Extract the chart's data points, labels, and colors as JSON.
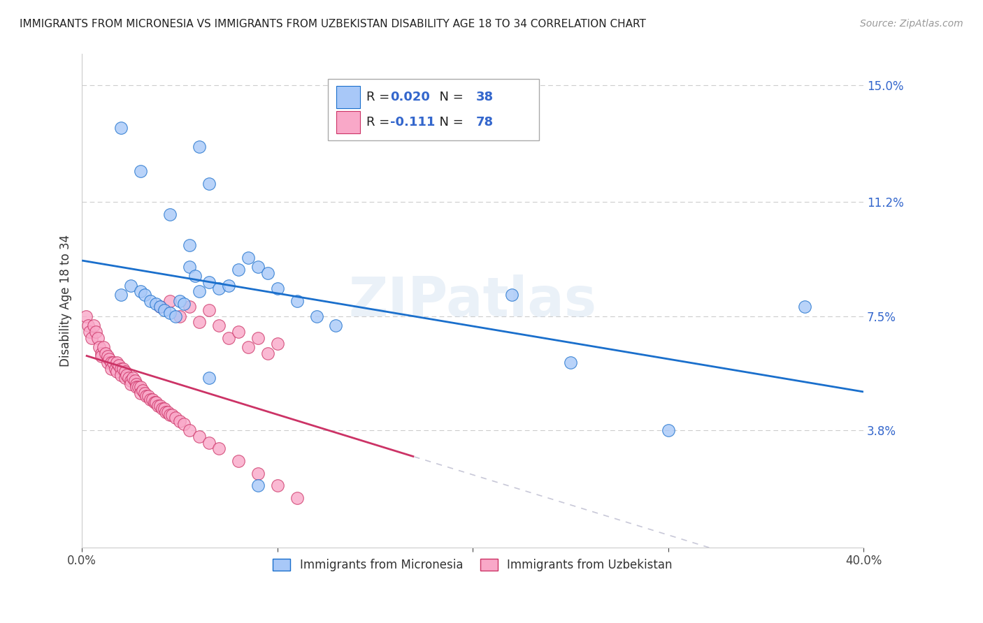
{
  "title": "IMMIGRANTS FROM MICRONESIA VS IMMIGRANTS FROM UZBEKISTAN DISABILITY AGE 18 TO 34 CORRELATION CHART",
  "source": "Source: ZipAtlas.com",
  "ylabel": "Disability Age 18 to 34",
  "xlim": [
    0.0,
    0.4
  ],
  "ylim": [
    0.0,
    0.16
  ],
  "R_micronesia": 0.02,
  "N_micronesia": 38,
  "R_uzbekistan": -0.111,
  "N_uzbekistan": 78,
  "micronesia_color": "#a8c8f8",
  "uzbekistan_color": "#f9a8c8",
  "trend_micronesia_color": "#1a6fcc",
  "trend_uzbekistan_color": "#cc3366",
  "trend_uzbekistan_ext_color": "#c8c8d8",
  "legend_micronesia": "Immigrants from Micronesia",
  "legend_uzbekistan": "Immigrants from Uzbekistan",
  "micronesia_x": [
    0.02,
    0.03,
    0.045,
    0.055,
    0.06,
    0.065,
    0.02,
    0.025,
    0.03,
    0.032,
    0.035,
    0.038,
    0.04,
    0.042,
    0.045,
    0.048,
    0.05,
    0.052,
    0.055,
    0.058,
    0.06,
    0.065,
    0.07,
    0.075,
    0.08,
    0.085,
    0.09,
    0.095,
    0.1,
    0.11,
    0.12,
    0.13,
    0.22,
    0.37,
    0.25,
    0.3,
    0.065,
    0.09
  ],
  "micronesia_y": [
    0.136,
    0.122,
    0.108,
    0.098,
    0.13,
    0.118,
    0.082,
    0.085,
    0.083,
    0.082,
    0.08,
    0.079,
    0.078,
    0.077,
    0.076,
    0.075,
    0.08,
    0.079,
    0.091,
    0.088,
    0.083,
    0.086,
    0.084,
    0.085,
    0.09,
    0.094,
    0.091,
    0.089,
    0.084,
    0.08,
    0.075,
    0.072,
    0.082,
    0.078,
    0.06,
    0.038,
    0.055,
    0.02
  ],
  "uzbekistan_x": [
    0.002,
    0.003,
    0.004,
    0.005,
    0.006,
    0.007,
    0.008,
    0.009,
    0.01,
    0.01,
    0.011,
    0.012,
    0.013,
    0.013,
    0.014,
    0.015,
    0.015,
    0.016,
    0.017,
    0.018,
    0.018,
    0.019,
    0.02,
    0.02,
    0.021,
    0.022,
    0.022,
    0.023,
    0.024,
    0.025,
    0.025,
    0.026,
    0.027,
    0.028,
    0.028,
    0.029,
    0.03,
    0.03,
    0.031,
    0.032,
    0.033,
    0.034,
    0.035,
    0.036,
    0.037,
    0.038,
    0.039,
    0.04,
    0.041,
    0.042,
    0.043,
    0.044,
    0.045,
    0.046,
    0.048,
    0.05,
    0.052,
    0.055,
    0.06,
    0.065,
    0.07,
    0.08,
    0.09,
    0.1,
    0.11,
    0.04,
    0.045,
    0.05,
    0.055,
    0.06,
    0.065,
    0.07,
    0.075,
    0.08,
    0.085,
    0.09,
    0.095,
    0.1
  ],
  "uzbekistan_y": [
    0.075,
    0.072,
    0.07,
    0.068,
    0.072,
    0.07,
    0.068,
    0.065,
    0.063,
    0.062,
    0.065,
    0.063,
    0.062,
    0.06,
    0.061,
    0.06,
    0.058,
    0.06,
    0.058,
    0.057,
    0.06,
    0.059,
    0.058,
    0.056,
    0.058,
    0.057,
    0.055,
    0.056,
    0.055,
    0.054,
    0.053,
    0.055,
    0.054,
    0.053,
    0.052,
    0.052,
    0.052,
    0.05,
    0.051,
    0.05,
    0.049,
    0.049,
    0.048,
    0.048,
    0.047,
    0.047,
    0.046,
    0.046,
    0.045,
    0.045,
    0.044,
    0.044,
    0.043,
    0.043,
    0.042,
    0.041,
    0.04,
    0.038,
    0.036,
    0.034,
    0.032,
    0.028,
    0.024,
    0.02,
    0.016,
    0.078,
    0.08,
    0.075,
    0.078,
    0.073,
    0.077,
    0.072,
    0.068,
    0.07,
    0.065,
    0.068,
    0.063,
    0.066
  ]
}
